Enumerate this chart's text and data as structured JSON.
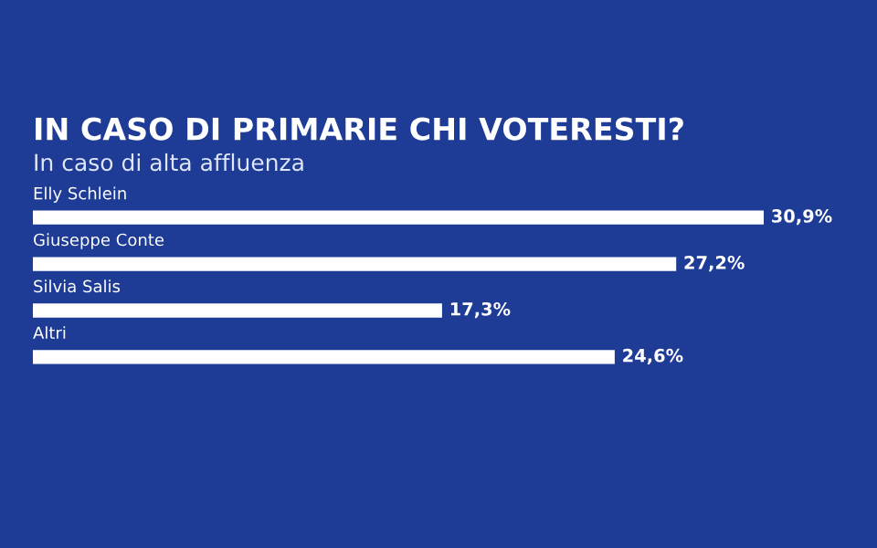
{
  "chart_data": {
    "type": "bar",
    "orientation": "horizontal",
    "title": "IN CASO DI PRIMARIE CHI VOTERESTI?",
    "subtitle": "In caso di alta affluenza",
    "categories": [
      "Elly Schlein",
      "Giuseppe Conte",
      "Silvia Salis",
      "Altri"
    ],
    "values": [
      30.9,
      27.2,
      17.3,
      24.6
    ],
    "color": "#ffffff",
    "value_labels": [
      "30,9%",
      "27,2%",
      "17,3%",
      "24,6%"
    ]
  }
}
